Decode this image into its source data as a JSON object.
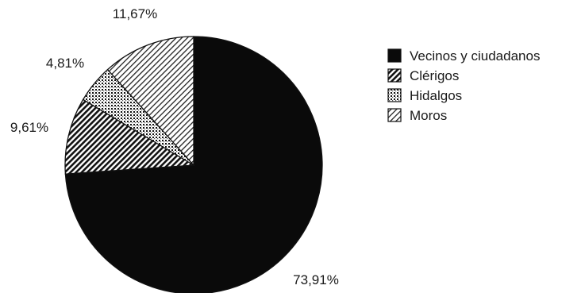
{
  "chart_data": {
    "type": "pie",
    "categories": [
      "Vecinos y ciudadanos",
      "Clérigos",
      "Hidalgos",
      "Moros"
    ],
    "values": [
      73.91,
      9.61,
      4.81,
      11.67
    ],
    "value_labels": [
      "73,91%",
      "9,61%",
      "4,81%",
      "11,67%"
    ],
    "start_angle_deg": 0,
    "direction": "clockwise",
    "legend_position": "right",
    "legend": [
      {
        "label": "Vecinos y ciudadanos",
        "pattern": "solid-black"
      },
      {
        "label": "Clérigos",
        "pattern": "diagonal-dense"
      },
      {
        "label": "Hidalgos",
        "pattern": "dotted"
      },
      {
        "label": "Moros",
        "pattern": "diagonal-sparse"
      }
    ]
  }
}
